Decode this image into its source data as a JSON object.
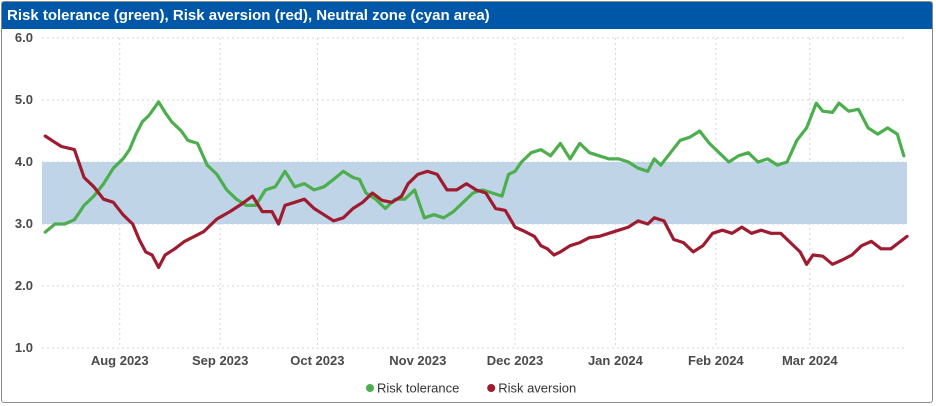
{
  "chart_data": {
    "type": "line",
    "title": "Risk tolerance (green), Risk aversion (red), Neutral zone (cyan area)",
    "x_start": "2023-07-08",
    "x_end": "2024-03-31",
    "x_ticks": [
      {
        "label": "Aug 2023",
        "date": "2023-08-01"
      },
      {
        "label": "Sep 2023",
        "date": "2023-09-01"
      },
      {
        "label": "Oct 2023",
        "date": "2023-10-01"
      },
      {
        "label": "Nov 2023",
        "date": "2023-11-01"
      },
      {
        "label": "Dec 2023",
        "date": "2023-12-01"
      },
      {
        "label": "Jan 2024",
        "date": "2024-01-01"
      },
      {
        "label": "Feb 2024",
        "date": "2024-02-01"
      },
      {
        "label": "Mar 2024",
        "date": "2024-03-01"
      }
    ],
    "y_ticks": [
      "1.0",
      "2.0",
      "3.0",
      "4.0",
      "5.0",
      "6.0"
    ],
    "ylim": [
      1.0,
      6.0
    ],
    "grid": true,
    "legend_position": "bottom",
    "band": {
      "name": "Neutral zone",
      "low": 3.0,
      "high": 4.0,
      "color": "#c0d4e7"
    },
    "series": [
      {
        "name": "Risk tolerance",
        "color": "#4cae4c",
        "points": [
          [
            "2023-07-09",
            2.87
          ],
          [
            "2023-07-12",
            3.0
          ],
          [
            "2023-07-15",
            3.0
          ],
          [
            "2023-07-18",
            3.07
          ],
          [
            "2023-07-21",
            3.3
          ],
          [
            "2023-07-24",
            3.45
          ],
          [
            "2023-07-27",
            3.65
          ],
          [
            "2023-07-30",
            3.9
          ],
          [
            "2023-08-02",
            4.05
          ],
          [
            "2023-08-04",
            4.2
          ],
          [
            "2023-08-06",
            4.45
          ],
          [
            "2023-08-08",
            4.65
          ],
          [
            "2023-08-10",
            4.75
          ],
          [
            "2023-08-13",
            4.97
          ],
          [
            "2023-08-15",
            4.8
          ],
          [
            "2023-08-17",
            4.65
          ],
          [
            "2023-08-20",
            4.5
          ],
          [
            "2023-08-22",
            4.35
          ],
          [
            "2023-08-25",
            4.3
          ],
          [
            "2023-08-28",
            3.95
          ],
          [
            "2023-08-31",
            3.8
          ],
          [
            "2023-09-03",
            3.55
          ],
          [
            "2023-09-06",
            3.4
          ],
          [
            "2023-09-09",
            3.3
          ],
          [
            "2023-09-12",
            3.3
          ],
          [
            "2023-09-15",
            3.55
          ],
          [
            "2023-09-18",
            3.6
          ],
          [
            "2023-09-21",
            3.85
          ],
          [
            "2023-09-24",
            3.6
          ],
          [
            "2023-09-27",
            3.65
          ],
          [
            "2023-09-30",
            3.55
          ],
          [
            "2023-10-03",
            3.6
          ],
          [
            "2023-10-06",
            3.72
          ],
          [
            "2023-10-09",
            3.85
          ],
          [
            "2023-10-12",
            3.75
          ],
          [
            "2023-10-14",
            3.72
          ],
          [
            "2023-10-16",
            3.5
          ],
          [
            "2023-10-19",
            3.4
          ],
          [
            "2023-10-22",
            3.25
          ],
          [
            "2023-10-25",
            3.4
          ],
          [
            "2023-10-28",
            3.4
          ],
          [
            "2023-10-31",
            3.55
          ],
          [
            "2023-11-03",
            3.1
          ],
          [
            "2023-11-06",
            3.15
          ],
          [
            "2023-11-09",
            3.1
          ],
          [
            "2023-11-12",
            3.2
          ],
          [
            "2023-11-15",
            3.35
          ],
          [
            "2023-11-18",
            3.5
          ],
          [
            "2023-11-21",
            3.55
          ],
          [
            "2023-11-24",
            3.5
          ],
          [
            "2023-11-27",
            3.45
          ],
          [
            "2023-11-29",
            3.8
          ],
          [
            "2023-12-01",
            3.85
          ],
          [
            "2023-12-03",
            4.0
          ],
          [
            "2023-12-06",
            4.15
          ],
          [
            "2023-12-09",
            4.2
          ],
          [
            "2023-12-12",
            4.1
          ],
          [
            "2023-12-15",
            4.3
          ],
          [
            "2023-12-18",
            4.05
          ],
          [
            "2023-12-21",
            4.3
          ],
          [
            "2023-12-24",
            4.15
          ],
          [
            "2023-12-27",
            4.1
          ],
          [
            "2023-12-30",
            4.05
          ],
          [
            "2024-01-02",
            4.05
          ],
          [
            "2024-01-05",
            4.0
          ],
          [
            "2024-01-08",
            3.9
          ],
          [
            "2024-01-11",
            3.85
          ],
          [
            "2024-01-13",
            4.05
          ],
          [
            "2024-01-15",
            3.95
          ],
          [
            "2024-01-18",
            4.15
          ],
          [
            "2024-01-21",
            4.35
          ],
          [
            "2024-01-24",
            4.4
          ],
          [
            "2024-01-27",
            4.5
          ],
          [
            "2024-01-30",
            4.3
          ],
          [
            "2024-02-02",
            4.15
          ],
          [
            "2024-02-05",
            4.0
          ],
          [
            "2024-02-08",
            4.1
          ],
          [
            "2024-02-11",
            4.15
          ],
          [
            "2024-02-14",
            4.0
          ],
          [
            "2024-02-17",
            4.05
          ],
          [
            "2024-02-20",
            3.95
          ],
          [
            "2024-02-23",
            4.0
          ],
          [
            "2024-02-26",
            4.35
          ],
          [
            "2024-02-29",
            4.55
          ],
          [
            "2024-03-03",
            4.95
          ],
          [
            "2024-03-05",
            4.82
          ],
          [
            "2024-03-08",
            4.8
          ],
          [
            "2024-03-10",
            4.95
          ],
          [
            "2024-03-13",
            4.82
          ],
          [
            "2024-03-16",
            4.85
          ],
          [
            "2024-03-19",
            4.55
          ],
          [
            "2024-03-22",
            4.45
          ],
          [
            "2024-03-25",
            4.55
          ],
          [
            "2024-03-28",
            4.45
          ],
          [
            "2024-03-30",
            4.1
          ]
        ]
      },
      {
        "name": "Risk aversion",
        "color": "#9e1b30",
        "points": [
          [
            "2023-07-09",
            4.42
          ],
          [
            "2023-07-11",
            4.35
          ],
          [
            "2023-07-14",
            4.25
          ],
          [
            "2023-07-18",
            4.2
          ],
          [
            "2023-07-21",
            3.75
          ],
          [
            "2023-07-24",
            3.6
          ],
          [
            "2023-07-27",
            3.4
          ],
          [
            "2023-07-30",
            3.35
          ],
          [
            "2023-08-02",
            3.15
          ],
          [
            "2023-08-05",
            3.0
          ],
          [
            "2023-08-07",
            2.75
          ],
          [
            "2023-08-09",
            2.55
          ],
          [
            "2023-08-11",
            2.5
          ],
          [
            "2023-08-13",
            2.3
          ],
          [
            "2023-08-15",
            2.5
          ],
          [
            "2023-08-18",
            2.6
          ],
          [
            "2023-08-21",
            2.72
          ],
          [
            "2023-08-24",
            2.8
          ],
          [
            "2023-08-27",
            2.88
          ],
          [
            "2023-08-31",
            3.08
          ],
          [
            "2023-09-04",
            3.2
          ],
          [
            "2023-09-07",
            3.3
          ],
          [
            "2023-09-11",
            3.45
          ],
          [
            "2023-09-14",
            3.2
          ],
          [
            "2023-09-17",
            3.2
          ],
          [
            "2023-09-19",
            3.0
          ],
          [
            "2023-09-21",
            3.3
          ],
          [
            "2023-09-24",
            3.35
          ],
          [
            "2023-09-27",
            3.4
          ],
          [
            "2023-09-30",
            3.25
          ],
          [
            "2023-10-03",
            3.15
          ],
          [
            "2023-10-06",
            3.05
          ],
          [
            "2023-10-09",
            3.1
          ],
          [
            "2023-10-12",
            3.25
          ],
          [
            "2023-10-15",
            3.35
          ],
          [
            "2023-10-18",
            3.5
          ],
          [
            "2023-10-21",
            3.38
          ],
          [
            "2023-10-24",
            3.35
          ],
          [
            "2023-10-27",
            3.45
          ],
          [
            "2023-10-29",
            3.65
          ],
          [
            "2023-11-01",
            3.8
          ],
          [
            "2023-11-04",
            3.85
          ],
          [
            "2023-11-07",
            3.8
          ],
          [
            "2023-11-10",
            3.55
          ],
          [
            "2023-11-13",
            3.55
          ],
          [
            "2023-11-16",
            3.65
          ],
          [
            "2023-11-19",
            3.55
          ],
          [
            "2023-11-22",
            3.5
          ],
          [
            "2023-11-25",
            3.25
          ],
          [
            "2023-11-28",
            3.22
          ],
          [
            "2023-12-01",
            2.95
          ],
          [
            "2023-12-04",
            2.88
          ],
          [
            "2023-12-07",
            2.8
          ],
          [
            "2023-12-09",
            2.65
          ],
          [
            "2023-12-11",
            2.6
          ],
          [
            "2023-12-13",
            2.5
          ],
          [
            "2023-12-15",
            2.55
          ],
          [
            "2023-12-18",
            2.65
          ],
          [
            "2023-12-21",
            2.7
          ],
          [
            "2023-12-24",
            2.78
          ],
          [
            "2023-12-27",
            2.8
          ],
          [
            "2023-12-30",
            2.85
          ],
          [
            "2024-01-02",
            2.9
          ],
          [
            "2024-01-05",
            2.95
          ],
          [
            "2024-01-08",
            3.05
          ],
          [
            "2024-01-11",
            3.0
          ],
          [
            "2024-01-13",
            3.1
          ],
          [
            "2024-01-16",
            3.05
          ],
          [
            "2024-01-19",
            2.75
          ],
          [
            "2024-01-22",
            2.7
          ],
          [
            "2024-01-25",
            2.55
          ],
          [
            "2024-01-28",
            2.65
          ],
          [
            "2024-01-31",
            2.85
          ],
          [
            "2024-02-03",
            2.9
          ],
          [
            "2024-02-06",
            2.85
          ],
          [
            "2024-02-09",
            2.95
          ],
          [
            "2024-02-12",
            2.85
          ],
          [
            "2024-02-15",
            2.9
          ],
          [
            "2024-02-18",
            2.85
          ],
          [
            "2024-02-21",
            2.85
          ],
          [
            "2024-02-24",
            2.7
          ],
          [
            "2024-02-27",
            2.55
          ],
          [
            "2024-02-29",
            2.35
          ],
          [
            "2024-03-02",
            2.5
          ],
          [
            "2024-03-05",
            2.48
          ],
          [
            "2024-03-08",
            2.35
          ],
          [
            "2024-03-11",
            2.42
          ],
          [
            "2024-03-14",
            2.5
          ],
          [
            "2024-03-17",
            2.65
          ],
          [
            "2024-03-20",
            2.72
          ],
          [
            "2024-03-23",
            2.6
          ],
          [
            "2024-03-26",
            2.6
          ],
          [
            "2024-03-29",
            2.72
          ],
          [
            "2024-03-31",
            2.8
          ]
        ]
      }
    ]
  }
}
